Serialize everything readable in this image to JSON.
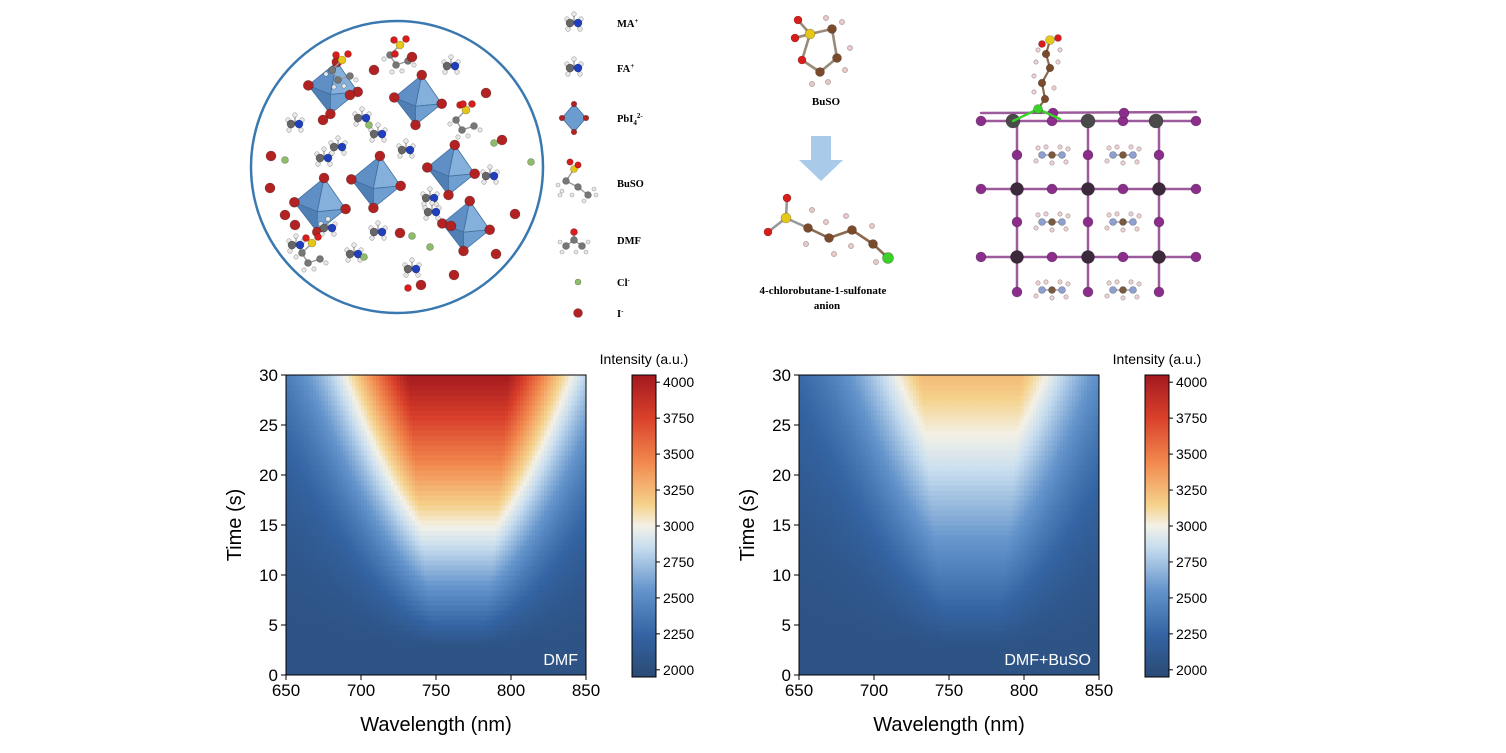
{
  "schematic": {
    "legend": [
      {
        "key": "ma",
        "label": "MA",
        "sup": "+",
        "sub": ""
      },
      {
        "key": "fa",
        "label": "FA",
        "sup": "+",
        "sub": ""
      },
      {
        "key": "pbi4",
        "label": "PbI",
        "sup": "2-",
        "sub": "4"
      },
      {
        "key": "buso",
        "label": "BuSO",
        "sup": "",
        "sub": ""
      },
      {
        "key": "dmf",
        "label": "DMF",
        "sup": "",
        "sub": ""
      },
      {
        "key": "cl",
        "label": "Cl",
        "sup": "-",
        "sub": ""
      },
      {
        "key": "i",
        "label": "I",
        "sup": "-",
        "sub": ""
      }
    ],
    "buso_label": "BuSO",
    "product_label_line1": "4-chlorobutane-1-sulfonate",
    "product_label_line2": "anion",
    "colors": {
      "iodide": "#b22222",
      "octahedron": "#6a9ccf",
      "chlorine": "#8fbc6b",
      "nitrogen": "#1f3fbf",
      "carbon": "#555555",
      "hydrogen": "#e8e8e8",
      "oxygen": "#d91c1c",
      "sulfur": "#e6c619",
      "lattice_iodide": "#8b2d8b",
      "lattice_lead": "#4a4a4a",
      "chain_carbon": "#7a4a2a",
      "cl_atom": "#3bd12a",
      "circle": "#3a78b0",
      "arrow": "#a9cbe9"
    }
  },
  "chart_data": [
    {
      "type": "heatmap",
      "annotation": "DMF",
      "xlabel": "Wavelength (nm)",
      "ylabel": "Time (s)",
      "colorbar_label": "Intensity (a.u.)",
      "xlim": [
        650,
        850
      ],
      "ylim": [
        0,
        30
      ],
      "xticks": [
        650,
        700,
        750,
        800,
        850
      ],
      "yticks": [
        0,
        5,
        10,
        15,
        20,
        25,
        30
      ],
      "colorbar_ticks": [
        2000,
        2250,
        2500,
        2750,
        3000,
        3250,
        3500,
        3750,
        4000
      ],
      "clim": [
        1950,
        4050
      ],
      "peak_wavelength": 765,
      "emission_onset_time": 3,
      "peak_intensity_at_30s": 4000,
      "baseline_intensity": 2050
    },
    {
      "type": "heatmap",
      "annotation": "DMF+BuSO",
      "xlabel": "Wavelength (nm)",
      "ylabel": "Time (s)",
      "colorbar_label": "Intensity (a.u.)",
      "xlim": [
        650,
        850
      ],
      "ylim": [
        0,
        30
      ],
      "xticks": [
        650,
        700,
        750,
        800,
        850
      ],
      "yticks": [
        0,
        5,
        10,
        15,
        20,
        25,
        30
      ],
      "colorbar_ticks": [
        2000,
        2250,
        2500,
        2750,
        3000,
        3250,
        3500,
        3750,
        4000
      ],
      "clim": [
        1950,
        4050
      ],
      "peak_wavelength": 765,
      "emission_onset_time": 3,
      "peak_intensity_at_30s": 3200,
      "baseline_intensity": 2050
    }
  ]
}
